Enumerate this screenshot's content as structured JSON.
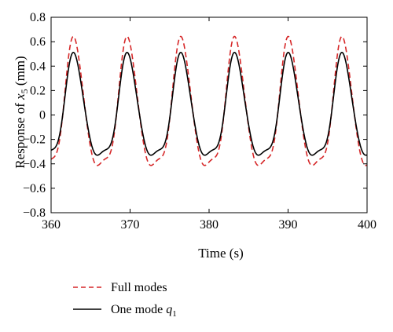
{
  "chart_data": {
    "type": "line",
    "title": "",
    "xlabel": "Time (s)",
    "ylabel_prefix": "Response of ",
    "ylabel_var": "x",
    "ylabel_sub": "5",
    "ylabel_suffix": " (mm)",
    "xlim": [
      360,
      400
    ],
    "ylim": [
      -0.8,
      0.8
    ],
    "xticks": [
      360,
      370,
      380,
      390,
      400
    ],
    "xtick_labels": [
      "360",
      "370",
      "380",
      "390",
      "400"
    ],
    "yticks": [
      -0.8,
      -0.6,
      -0.4,
      -0.2,
      0,
      0.2,
      0.4,
      0.6,
      0.8
    ],
    "ytick_labels": [
      "−0.8",
      "−0.6",
      "−0.4",
      "−0.2",
      "0",
      "0.2",
      "0.4",
      "0.6",
      "0.8"
    ],
    "grid": false,
    "legend_position": "bottom-left, below plot",
    "period": 6.8,
    "series": [
      {
        "name": "Full modes",
        "color": "#d62728",
        "dash": "dashed",
        "amplitude": 0.64,
        "peak_times": [
          362.9,
          369.7,
          376.5,
          383.3,
          390.1,
          396.9
        ],
        "trough_times": [
          366.3,
          373.1,
          379.9,
          386.7,
          393.5
        ]
      },
      {
        "name_text": "One mode ",
        "name_var": "q",
        "name_sub": "1",
        "color": "#000000",
        "dash": "solid",
        "amplitude": 0.51,
        "peak_times": [
          362.9,
          369.7,
          376.5,
          383.3,
          390.1,
          396.9
        ],
        "trough_times": [
          366.3,
          373.1,
          379.9,
          386.7,
          393.5
        ]
      }
    ]
  }
}
